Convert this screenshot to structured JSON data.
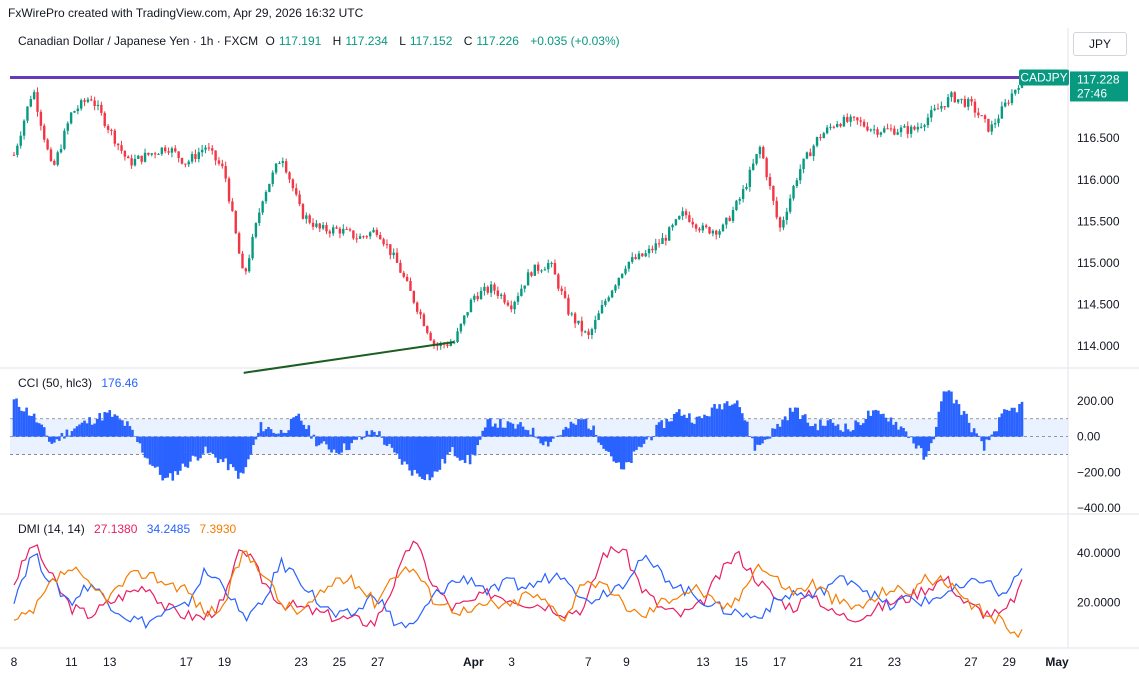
{
  "attribution": "FxWirePro created with TradingView.com, Apr 29, 2026 16:32 UTC",
  "header": {
    "instrument": "Canadian Dollar / Japanese Yen · 1h · FXCM",
    "open_label": "O",
    "open": "117.191",
    "high_label": "H",
    "high": "117.234",
    "low_label": "L",
    "low": "117.152",
    "close_label": "C",
    "close": "117.226",
    "change": "+0.035 (+0.03%)",
    "currency": "JPY"
  },
  "price_tag": {
    "symbol": "CADJPY",
    "price": "117.228",
    "countdown": "27:46"
  },
  "colors": {
    "up": "#089981",
    "down": "#f23645",
    "resistance": "#673ab7",
    "trend": "#1b5e20",
    "cci": "#2962ff",
    "cci_band": "#dbeafe",
    "plus_di": "#2962ff",
    "minus_di": "#f57c00",
    "adx": "#e91e63"
  },
  "indicators": {
    "cci": {
      "label": "CCI (50, hlc3)",
      "value": "176.46",
      "axis_ticks": [
        "200.00",
        "0.00",
        "−200.00",
        "−400.00"
      ]
    },
    "dmi": {
      "label": "DMI (14, 14)",
      "adx": "27.1380",
      "plus_di": "34.2485",
      "minus_di": "7.3930",
      "axis_ticks": [
        "40.0000",
        "20.0000"
      ]
    }
  },
  "chart_data": [
    {
      "type": "candlestick",
      "title": "Canadian Dollar / Japanese Yen · 1h · FXCM",
      "x_tick_labels": [
        "8",
        "11",
        "13",
        "17",
        "19",
        "23",
        "25",
        "27",
        "Apr",
        "3",
        "7",
        "9",
        "13",
        "15",
        "17",
        "21",
        "23",
        "27",
        "29",
        "May"
      ],
      "y_tick_labels": [
        "116.500",
        "116.000",
        "115.500",
        "115.000",
        "114.500",
        "114.000"
      ],
      "ylim": [
        113.75,
        117.5
      ],
      "resistance_level": 117.23,
      "trendline": [
        {
          "x": "Mar 20",
          "y": 113.68
        },
        {
          "x": "Mar 31",
          "y": 114.05
        }
      ],
      "close_path": [
        {
          "x": "Mar 8",
          "y": 116.3
        },
        {
          "x": "Mar 9",
          "y": 117.1
        },
        {
          "x": "Mar 10",
          "y": 116.1
        },
        {
          "x": "Mar 11",
          "y": 116.8
        },
        {
          "x": "Mar 12",
          "y": 117.0
        },
        {
          "x": "Mar 13",
          "y": 116.6
        },
        {
          "x": "Mar 14",
          "y": 116.2
        },
        {
          "x": "Mar 16",
          "y": 116.4
        },
        {
          "x": "Mar 17",
          "y": 116.2
        },
        {
          "x": "Mar 18",
          "y": 116.4
        },
        {
          "x": "Mar 19",
          "y": 116.1
        },
        {
          "x": "Mar 20",
          "y": 114.8
        },
        {
          "x": "Mar 21",
          "y": 115.8
        },
        {
          "x": "Mar 22",
          "y": 116.3
        },
        {
          "x": "Mar 23",
          "y": 115.6
        },
        {
          "x": "Mar 24",
          "y": 115.4
        },
        {
          "x": "Mar 25",
          "y": 115.4
        },
        {
          "x": "Mar 26",
          "y": 115.3
        },
        {
          "x": "Mar 27",
          "y": 115.4
        },
        {
          "x": "Mar 28",
          "y": 115.0
        },
        {
          "x": "Mar 29",
          "y": 114.5
        },
        {
          "x": "Mar 30",
          "y": 114.0
        },
        {
          "x": "Mar 31",
          "y": 114.05
        },
        {
          "x": "Apr 1",
          "y": 114.6
        },
        {
          "x": "Apr 2",
          "y": 114.7
        },
        {
          "x": "Apr 3",
          "y": 114.5
        },
        {
          "x": "Apr 4",
          "y": 114.9
        },
        {
          "x": "Apr 5",
          "y": 115.0
        },
        {
          "x": "Apr 6",
          "y": 114.4
        },
        {
          "x": "Apr 7",
          "y": 114.1
        },
        {
          "x": "Apr 8",
          "y": 114.6
        },
        {
          "x": "Apr 9",
          "y": 115.0
        },
        {
          "x": "Apr 10",
          "y": 115.1
        },
        {
          "x": "Apr 11",
          "y": 115.3
        },
        {
          "x": "Apr 12",
          "y": 115.6
        },
        {
          "x": "Apr 13",
          "y": 115.4
        },
        {
          "x": "Apr 14",
          "y": 115.4
        },
        {
          "x": "Apr 15",
          "y": 115.8
        },
        {
          "x": "Apr 16",
          "y": 116.4
        },
        {
          "x": "Apr 17",
          "y": 115.4
        },
        {
          "x": "Apr 18",
          "y": 116.1
        },
        {
          "x": "Apr 19",
          "y": 116.5
        },
        {
          "x": "Apr 20",
          "y": 116.7
        },
        {
          "x": "Apr 21",
          "y": 116.7
        },
        {
          "x": "Apr 22",
          "y": 116.6
        },
        {
          "x": "Apr 23",
          "y": 116.6
        },
        {
          "x": "Apr 24",
          "y": 116.6
        },
        {
          "x": "Apr 25",
          "y": 116.8
        },
        {
          "x": "Apr 26",
          "y": 117.0
        },
        {
          "x": "Apr 27",
          "y": 116.9
        },
        {
          "x": "Apr 28",
          "y": 116.6
        },
        {
          "x": "Apr 29",
          "y": 117.23
        }
      ]
    },
    {
      "type": "bar",
      "title": "CCI (50, hlc3)",
      "ylim": [
        -400,
        250
      ],
      "bands": [
        -100,
        100
      ],
      "x_range": [
        "Mar 8",
        "Apr 29"
      ],
      "values": [
        200,
        120,
        -40,
        40,
        90,
        130,
        60,
        -120,
        -250,
        -160,
        -80,
        -140,
        -230,
        60,
        20,
        110,
        -40,
        -80,
        -30,
        40,
        -100,
        -200,
        -230,
        -80,
        -140,
        90,
        60,
        50,
        -40,
        40,
        100,
        -40,
        -200,
        -50,
        60,
        140,
        90,
        170,
        220,
        -70,
        40,
        160,
        60,
        80,
        40,
        130,
        110,
        20,
        -140,
        280,
        120,
        -70,
        120,
        176
      ]
    },
    {
      "type": "line",
      "title": "DMI (14, 14)",
      "ylim": [
        5,
        50
      ],
      "x_range": [
        "Mar 8",
        "Apr 29"
      ],
      "series": [
        {
          "name": "ADX",
          "values": [
            28,
            44,
            30,
            18,
            15,
            20,
            24,
            27,
            18,
            15,
            14,
            20,
            43,
            30,
            20,
            18,
            16,
            14,
            13,
            12,
            28,
            46,
            28,
            18,
            20,
            24,
            22,
            20,
            19,
            16,
            18,
            40,
            42,
            26,
            18,
            15,
            18,
            30,
            40,
            30,
            22,
            18,
            24,
            16,
            14,
            16,
            20,
            22,
            26,
            30,
            20,
            16,
            15,
            27
          ]
        },
        {
          "name": "+DI",
          "values": [
            22,
            40,
            28,
            20,
            28,
            20,
            14,
            12,
            16,
            18,
            32,
            28,
            14,
            18,
            36,
            30,
            20,
            14,
            16,
            24,
            12,
            10,
            22,
            28,
            30,
            24,
            28,
            26,
            30,
            32,
            20,
            24,
            28,
            38,
            32,
            26,
            22,
            18,
            16,
            14,
            20,
            24,
            22,
            28,
            30,
            24,
            18,
            22,
            20,
            24,
            26,
            30,
            22,
            34
          ]
        },
        {
          "name": "−DI",
          "values": [
            12,
            16,
            28,
            34,
            26,
            22,
            30,
            32,
            28,
            26,
            16,
            18,
            40,
            34,
            20,
            16,
            22,
            30,
            28,
            20,
            32,
            34,
            22,
            18,
            16,
            20,
            18,
            24,
            20,
            14,
            30,
            26,
            20,
            14,
            20,
            24,
            26,
            18,
            20,
            36,
            30,
            24,
            28,
            22,
            18,
            20,
            26,
            24,
            30,
            28,
            20,
            16,
            12,
            7
          ]
        }
      ]
    }
  ]
}
